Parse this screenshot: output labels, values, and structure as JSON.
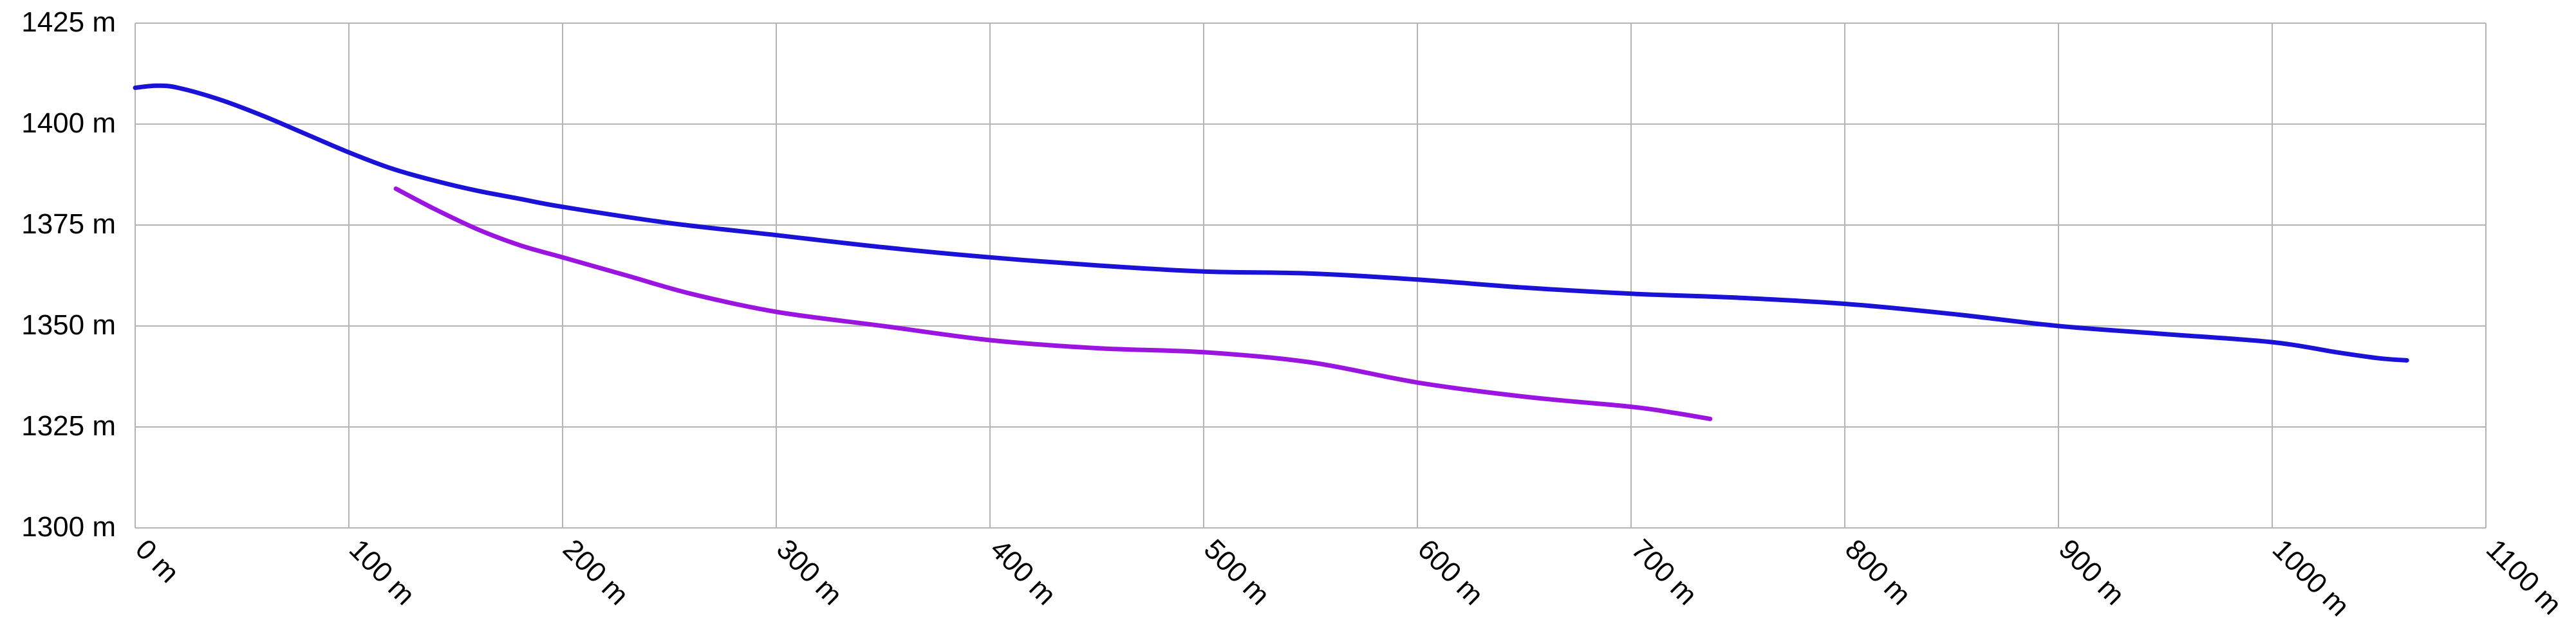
{
  "chart_data": {
    "type": "line",
    "title": "",
    "xlabel": "",
    "ylabel": "",
    "xlim": [
      0,
      1100
    ],
    "ylim": [
      1300,
      1425
    ],
    "x_ticks": [
      0,
      100,
      200,
      300,
      400,
      500,
      600,
      700,
      800,
      900,
      1000,
      1100
    ],
    "y_ticks": [
      1300,
      1325,
      1350,
      1375,
      1400,
      1425
    ],
    "x_tick_labels": [
      "0 m",
      "100 m",
      "200 m",
      "300 m",
      "400 m",
      "500 m",
      "600 m",
      "700 m",
      "800 m",
      "900 m",
      "1000 m",
      "1100 m"
    ],
    "y_tick_labels": [
      "1300 m",
      "1325 m",
      "1350 m",
      "1375 m",
      "1400 m",
      "1425 m"
    ],
    "grid": true,
    "legend": "none",
    "series": [
      {
        "color": "#1a12d6",
        "points": [
          [
            0,
            1409
          ],
          [
            10,
            1409.5
          ],
          [
            20,
            1409
          ],
          [
            40,
            1406
          ],
          [
            60,
            1402
          ],
          [
            80,
            1397.5
          ],
          [
            100,
            1393
          ],
          [
            120,
            1389
          ],
          [
            140,
            1386
          ],
          [
            160,
            1383.5
          ],
          [
            180,
            1381.5
          ],
          [
            200,
            1379.5
          ],
          [
            250,
            1375.5
          ],
          [
            300,
            1372.5
          ],
          [
            350,
            1369.5
          ],
          [
            400,
            1367
          ],
          [
            450,
            1365
          ],
          [
            500,
            1363.5
          ],
          [
            550,
            1363
          ],
          [
            600,
            1361.5
          ],
          [
            650,
            1359.5
          ],
          [
            700,
            1358
          ],
          [
            750,
            1357
          ],
          [
            800,
            1355.5
          ],
          [
            850,
            1353
          ],
          [
            900,
            1350
          ],
          [
            950,
            1348
          ],
          [
            1000,
            1346
          ],
          [
            1030,
            1343.5
          ],
          [
            1050,
            1342
          ],
          [
            1063,
            1341.5
          ]
        ]
      },
      {
        "color": "#9b14e0",
        "points": [
          [
            122,
            1384
          ],
          [
            140,
            1379
          ],
          [
            160,
            1374
          ],
          [
            180,
            1370
          ],
          [
            200,
            1367
          ],
          [
            230,
            1362.5
          ],
          [
            260,
            1358
          ],
          [
            300,
            1353.5
          ],
          [
            350,
            1350
          ],
          [
            400,
            1346.5
          ],
          [
            450,
            1344.5
          ],
          [
            500,
            1343.5
          ],
          [
            550,
            1341
          ],
          [
            600,
            1336
          ],
          [
            650,
            1332.5
          ],
          [
            700,
            1330
          ],
          [
            720,
            1328.5
          ],
          [
            737,
            1327
          ]
        ]
      }
    ]
  }
}
